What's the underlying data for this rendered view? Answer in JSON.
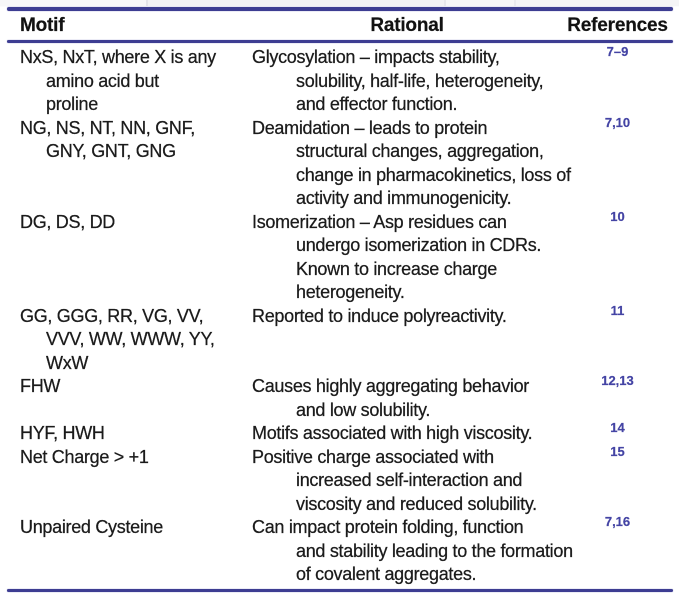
{
  "theme": {
    "accent": "#3d3d92",
    "ref": "#4444a4",
    "text": "#1b1b1b",
    "bg": "#ffffff",
    "strip": "#f4f4f6"
  },
  "table": {
    "headers": {
      "motif": "Motif",
      "rational": "Rational",
      "references": "References"
    },
    "rows": [
      {
        "motif": "NxS, NxT, where X is any\namino acid but\nproline",
        "rational": "Glycosylation – impacts stability,\nsolubility, half-life, heterogeneity,\nand effector function.",
        "references": "7–9"
      },
      {
        "motif": "NG, NS, NT, NN, GNF,\nGNY, GNT, GNG",
        "rational": "Deamidation – leads to protein\nstructural changes, aggregation,\nchange in pharmacokinetics, loss of\nactivity and immunogenicity.",
        "references": "7,10"
      },
      {
        "motif": "DG, DS, DD",
        "rational": "Isomerization – Asp residues can\nundergo isomerization in CDRs.\nKnown to increase charge\nheterogeneity.",
        "references": "10"
      },
      {
        "motif": "GG, GGG, RR, VG, VV,\nVVV, WW, WWW, YY,\nWxW",
        "rational": "Reported to induce polyreactivity.",
        "references": "11"
      },
      {
        "motif": "FHW",
        "rational": "Causes highly aggregating behavior\nand low solubility.",
        "references": "12,13"
      },
      {
        "motif": "HYF, HWH",
        "rational": "Motifs associated with high viscosity.",
        "references": "14"
      },
      {
        "motif": "Net Charge > +1",
        "rational": "Positive charge associated with\nincreased self-interaction and\nviscosity and reduced solubility.",
        "references": "15"
      },
      {
        "motif": "Unpaired Cysteine",
        "rational": "Can impact protein folding, function\nand stability leading to the formation\nof covalent aggregates.",
        "references": "7,16"
      }
    ]
  }
}
